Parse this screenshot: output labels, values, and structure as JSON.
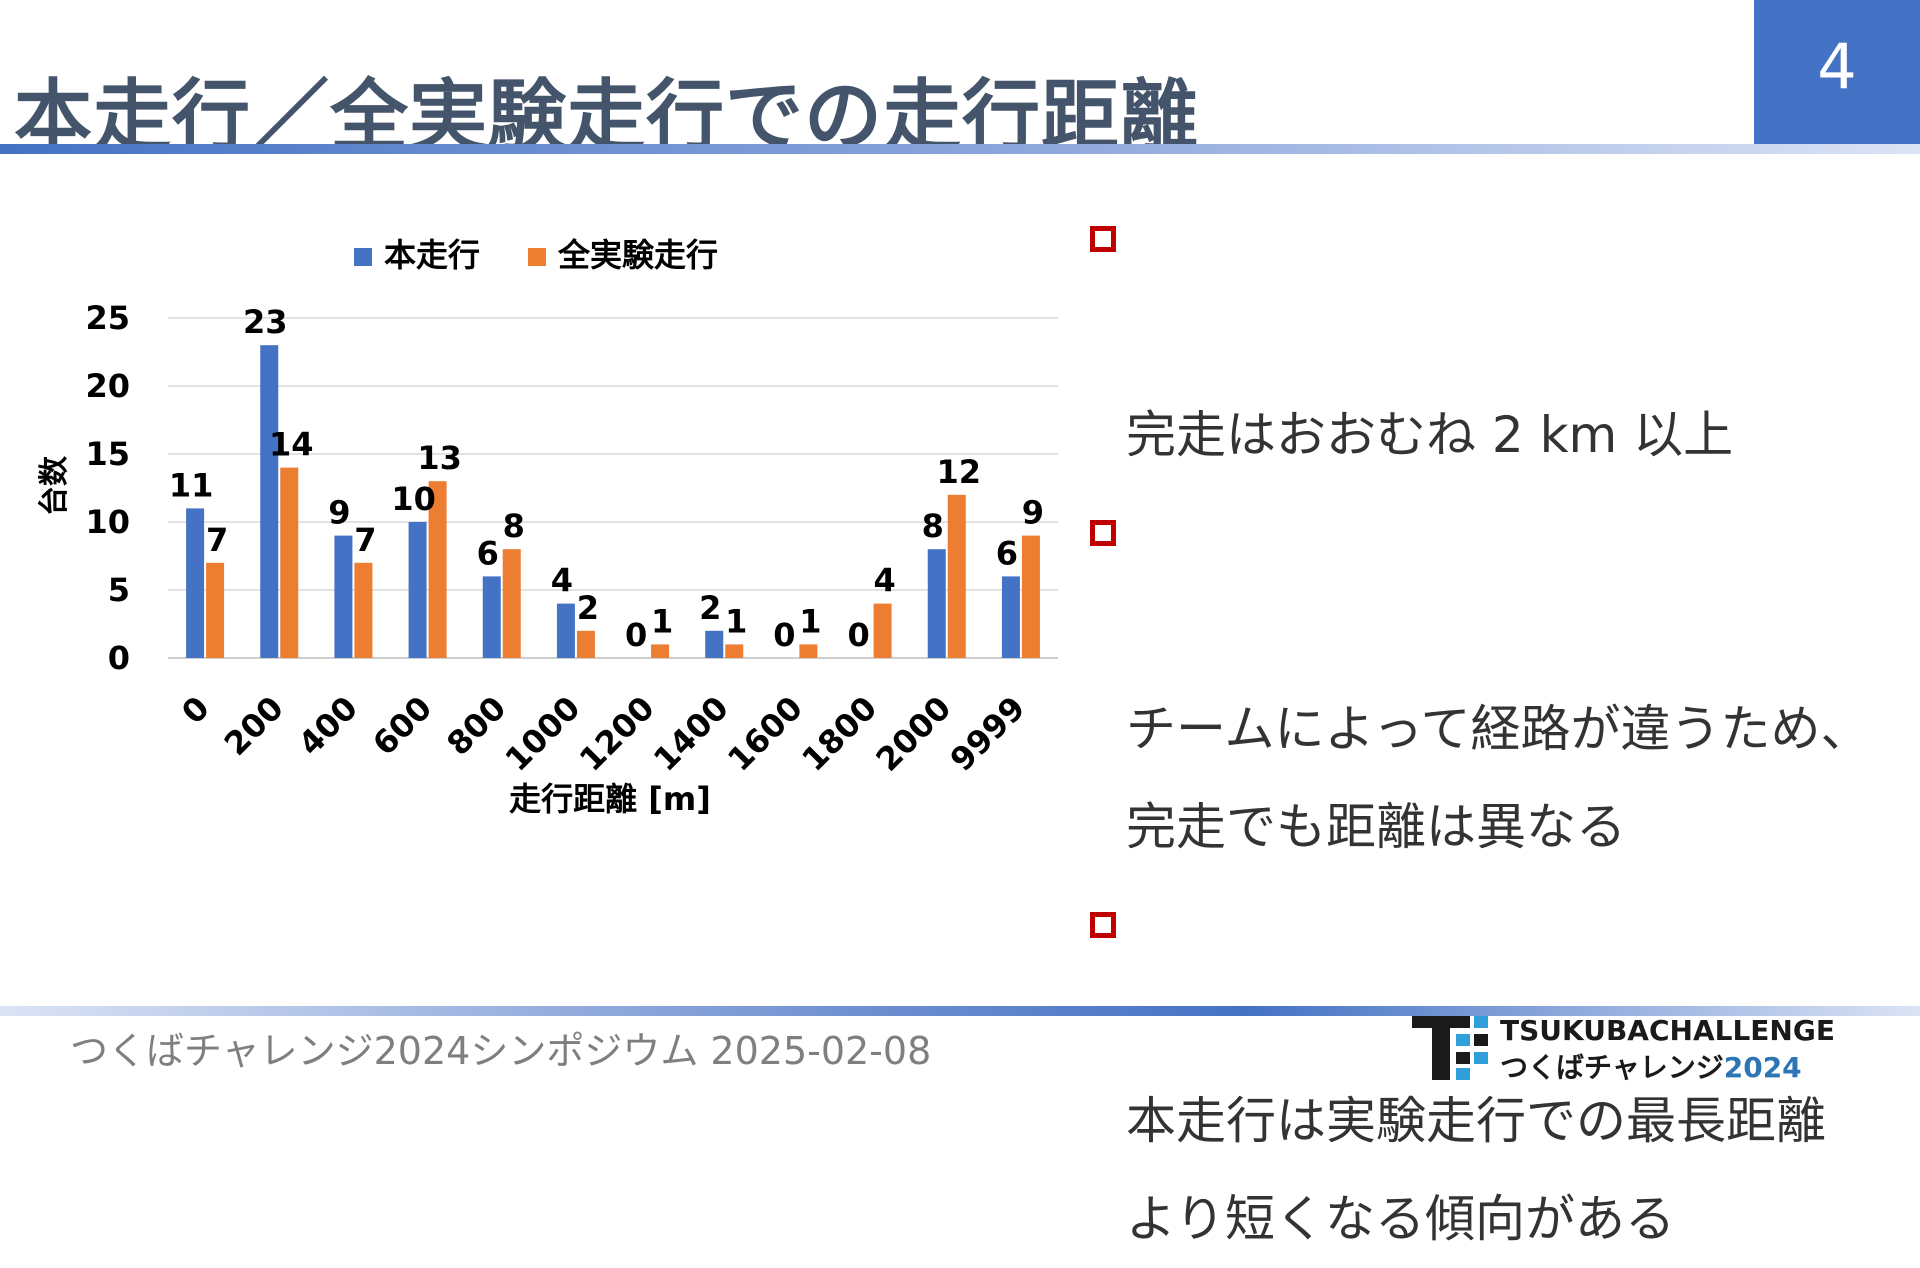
{
  "slide": {
    "title": "本走行／全実験走行での走行距離",
    "page_number": "4",
    "footer": "つくばチャレンジ2024シンポジウム  2025-02-08",
    "bullets": [
      "完走はおおむね 2 km 以上",
      "チームによって経路が違うため、\n完走でも距離は異なる",
      "本走行は実験走行での最長距離\nより短くなる傾向がある"
    ],
    "bullet_marker_color": "#c00000",
    "logo": {
      "line1": "TSUKUBACHALLENGE",
      "line2_text": "つくばチャレンジ",
      "line2_year": "2024",
      "year_color": "#2e75b6"
    }
  },
  "chart_data": {
    "type": "bar",
    "title": "",
    "xlabel": "走行距離 [m]",
    "ylabel": "台数",
    "categories": [
      "0",
      "200",
      "400",
      "600",
      "800",
      "1000",
      "1200",
      "1400",
      "1600",
      "1800",
      "2000",
      "9999"
    ],
    "series": [
      {
        "name": "本走行",
        "color": "#4472c4",
        "values": [
          11,
          23,
          9,
          10,
          6,
          4,
          0,
          2,
          0,
          0,
          8,
          6
        ]
      },
      {
        "name": "全実験走行",
        "color": "#ed7d31",
        "values": [
          7,
          14,
          7,
          13,
          8,
          2,
          1,
          1,
          1,
          4,
          12,
          9
        ]
      }
    ],
    "ylim": [
      0,
      25
    ],
    "yticks": [
      0,
      5,
      10,
      15,
      20,
      25
    ],
    "grid": true,
    "legend_position": "top",
    "data_labels": true
  }
}
